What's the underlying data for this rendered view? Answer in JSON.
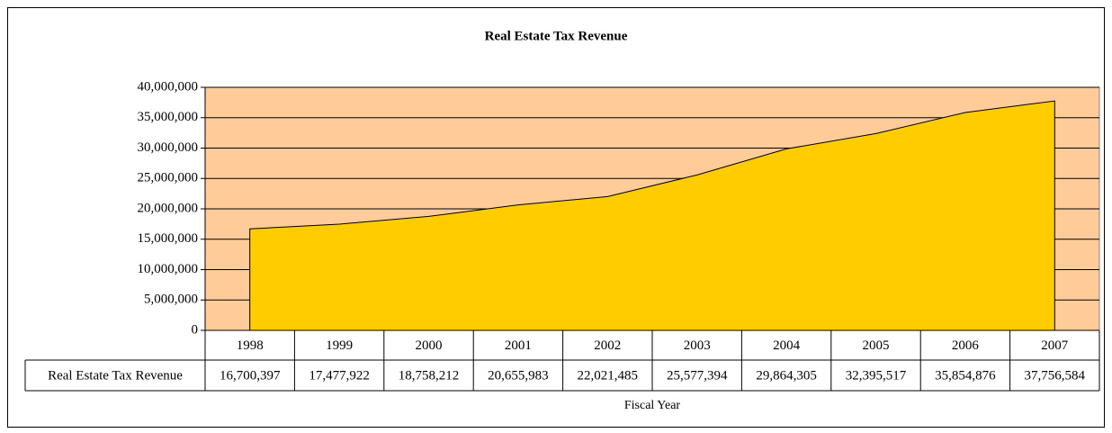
{
  "chart_data": {
    "type": "area",
    "title": "Real Estate Tax Revenue",
    "x_label": "Fiscal Year",
    "categories": [
      "1998",
      "1999",
      "2000",
      "2001",
      "2002",
      "2003",
      "2004",
      "2005",
      "2006",
      "2007"
    ],
    "series": [
      {
        "name": "Real Estate Tax Revenue",
        "color": "#ffcc00",
        "values": [
          16700397,
          17477922,
          18758212,
          20655983,
          22021485,
          25577394,
          29864305,
          32395517,
          35854876,
          37756584
        ],
        "value_labels": [
          "16,700,397",
          "17,477,922",
          "18,758,212",
          "20,655,983",
          "22,021,485",
          "25,577,394",
          "29,864,305",
          "32,395,517",
          "35,854,876",
          "37,756,584"
        ]
      }
    ],
    "ylim": [
      0,
      40000000
    ],
    "yticks": [
      0,
      {
        "value": 5000000,
        "label": "5,000,000"
      },
      {
        "value": 10000000,
        "label": "10,000,000"
      },
      {
        "value": 15000000,
        "label": "15,000,000"
      },
      {
        "value": 20000000,
        "label": "20,000,000"
      },
      {
        "value": 25000000,
        "label": "25,000,000"
      },
      {
        "value": 30000000,
        "label": "30,000,000"
      },
      {
        "value": 35000000,
        "label": "35,000,000"
      },
      {
        "value": 40000000,
        "label": "40,000,000"
      }
    ],
    "grid": true,
    "plot_background": "#ffcc99"
  }
}
